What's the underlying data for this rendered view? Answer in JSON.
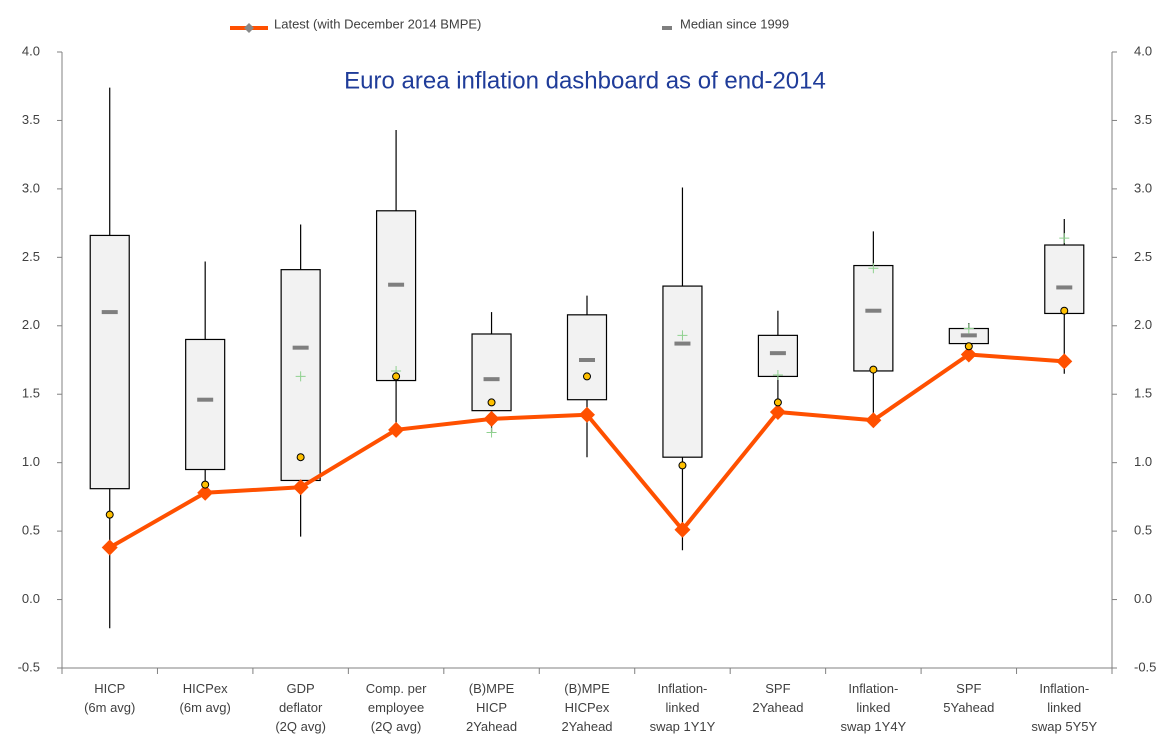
{
  "chart_data": {
    "type": "box",
    "title": "Euro area inflation dashboard as of end-2014",
    "categories": [
      "HICP\n(6m avg)",
      "HICPex\n(6m avg)",
      "GDP\ndeflator\n(2Q avg)",
      "Comp. per\nemployee\n(2Q avg)",
      "(B)MPE\nHICP\n2Yahead",
      "(B)MPE\nHICPex\n2Yahead",
      "Inflation-\nlinked\nswap 1Y1Y",
      "SPF\n2Yahead",
      "Inflation-\nlinked\nswap 1Y4Y",
      "SPF\n5Yahead",
      "Inflation-\nlinked\nswap 5Y5Y"
    ],
    "boxes": {
      "low": [
        -0.21,
        0.84,
        0.46,
        1.24,
        1.22,
        1.04,
        0.36,
        1.36,
        1.31,
        1.87,
        1.65
      ],
      "q1": [
        0.81,
        0.95,
        0.87,
        1.6,
        1.38,
        1.46,
        1.04,
        1.63,
        1.67,
        1.87,
        2.09
      ],
      "q3": [
        2.66,
        1.9,
        2.41,
        2.84,
        1.94,
        2.08,
        2.29,
        1.93,
        2.44,
        1.98,
        2.59
      ],
      "high": [
        3.74,
        2.47,
        2.74,
        3.43,
        2.1,
        2.22,
        3.01,
        2.11,
        2.69,
        2.02,
        2.78
      ],
      "color": "#f2f2f2"
    },
    "series": [
      {
        "name": "Latest (with December 2014 BMPE)",
        "color": "#ff5000",
        "values": [
          0.38,
          0.78,
          0.82,
          1.24,
          1.32,
          1.35,
          0.51,
          1.37,
          1.31,
          1.79,
          1.74
        ]
      },
      {
        "name": "Median since 1999",
        "color": "#7f7f7f",
        "values": [
          2.1,
          1.46,
          1.84,
          2.3,
          1.61,
          1.75,
          1.87,
          1.8,
          2.11,
          1.93,
          2.28
        ]
      }
    ],
    "dots": {
      "color": "#ffc000",
      "values": [
        0.62,
        0.84,
        1.04,
        1.63,
        1.44,
        1.63,
        0.98,
        1.44,
        1.68,
        1.85,
        2.11
      ]
    },
    "plus": {
      "color": "#8fd18f",
      "values": [
        null,
        null,
        1.63,
        1.67,
        1.22,
        null,
        1.93,
        1.64,
        2.42,
        1.98,
        2.64
      ]
    },
    "ylim": [
      -0.5,
      4.0
    ],
    "yticks": [
      -0.5,
      {
        "value": 0,
        "label": "0.0"
      },
      0.5,
      {
        "value": 1,
        "label": "1.0"
      },
      1.5,
      {
        "value": 2,
        "label": "2.0"
      },
      2.5,
      {
        "value": 3,
        "label": "3.0"
      },
      3.5,
      {
        "value": 4,
        "label": "4.0"
      }
    ],
    "y2lim": [
      -0.5,
      4.0
    ],
    "y2ticks": [
      -0.5,
      {
        "value": 0,
        "label": "0.0"
      },
      0.5,
      {
        "value": 1,
        "label": "1.0"
      },
      1.5,
      {
        "value": 2,
        "label": "2.0"
      },
      2.5,
      {
        "value": 3,
        "label": "3.0"
      },
      3.5,
      {
        "value": 4,
        "label": "4.0"
      }
    ],
    "grid": false
  }
}
